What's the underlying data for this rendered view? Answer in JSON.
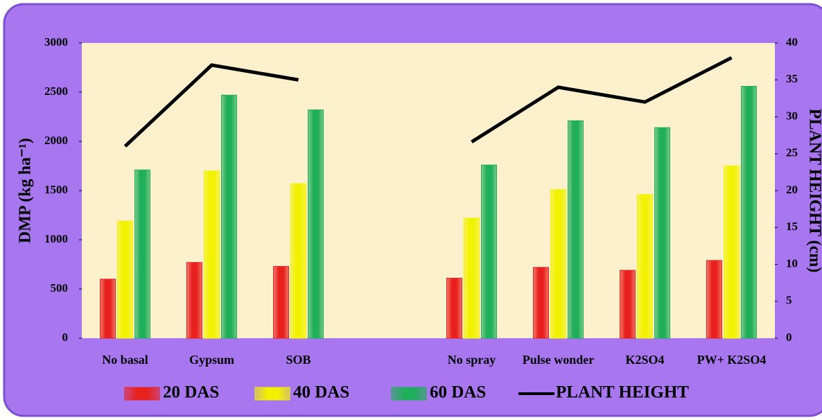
{
  "chart_data": {
    "type": "bar",
    "categories": [
      "No basal",
      "Gypsum",
      "SOB",
      null,
      "No spray",
      "Pulse wonder",
      "K2SO4",
      "PW+ K2SO4"
    ],
    "series": [
      {
        "name": "20 DAS",
        "color": "#e8201e",
        "values": [
          600,
          770,
          730,
          null,
          610,
          720,
          690,
          790
        ]
      },
      {
        "name": "40 DAS",
        "color": "#f2f200",
        "values": [
          1190,
          1700,
          1570,
          null,
          1220,
          1510,
          1460,
          1750
        ]
      },
      {
        "name": "60 DAS",
        "color": "#1fae5a",
        "values": [
          1710,
          2470,
          2320,
          null,
          1760,
          2210,
          2140,
          2560
        ]
      },
      {
        "name": "PLANT HEIGHT",
        "color": "#000000",
        "type": "line",
        "axis": "y2",
        "values": [
          26,
          37,
          35,
          null,
          26.6,
          34,
          32,
          38
        ]
      }
    ],
    "y_label": "DMP (kg ha⁻¹)",
    "y2_label": "PLANT HEIGHT (cm)",
    "ylim": [
      0,
      3000
    ],
    "yticks": [
      0,
      500,
      1000,
      1500,
      2000,
      2500,
      3000
    ],
    "y2lim": [
      0,
      40
    ],
    "y2ticks": [
      0,
      5,
      10,
      15,
      20,
      25,
      30,
      35,
      40
    ],
    "legend": "bottom"
  }
}
